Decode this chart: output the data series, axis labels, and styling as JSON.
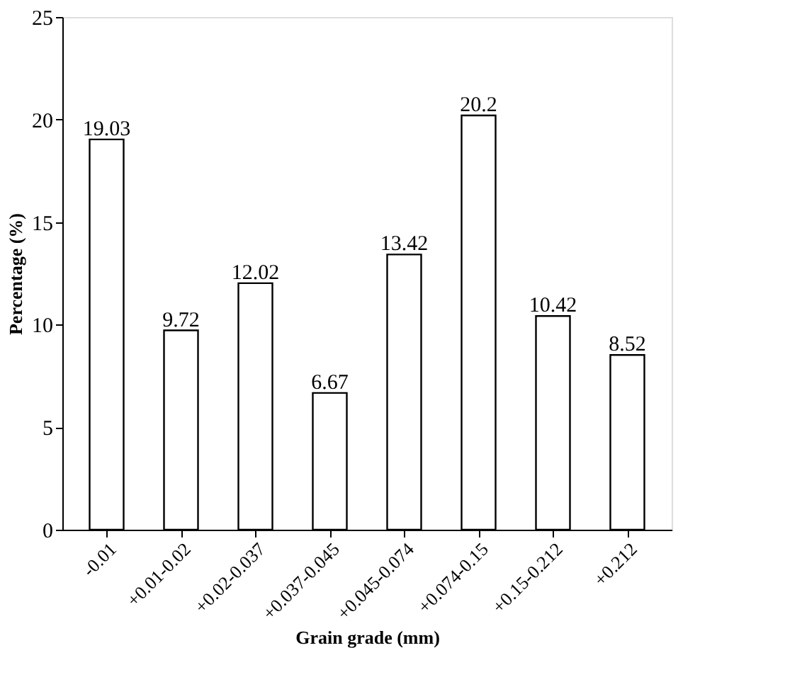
{
  "chart_data": {
    "type": "bar",
    "xlabel": "Grain grade  (mm)",
    "ylabel": "Percentage (%)",
    "categories": [
      "-0.01",
      "+0.01-0.02",
      "+0.02-0.037",
      "+0.037-0.045",
      "+0.045-0.074",
      "+0.074-0.15",
      "+0.15-0.212",
      "+0.212"
    ],
    "values": [
      19.03,
      9.72,
      12.02,
      6.67,
      13.42,
      20.2,
      10.42,
      8.52
    ],
    "color": "#ffffff",
    "ylim": [
      0,
      25
    ],
    "yticks": [
      0,
      5,
      10,
      15,
      20,
      25
    ],
    "data_labels": true,
    "grid": false
  }
}
